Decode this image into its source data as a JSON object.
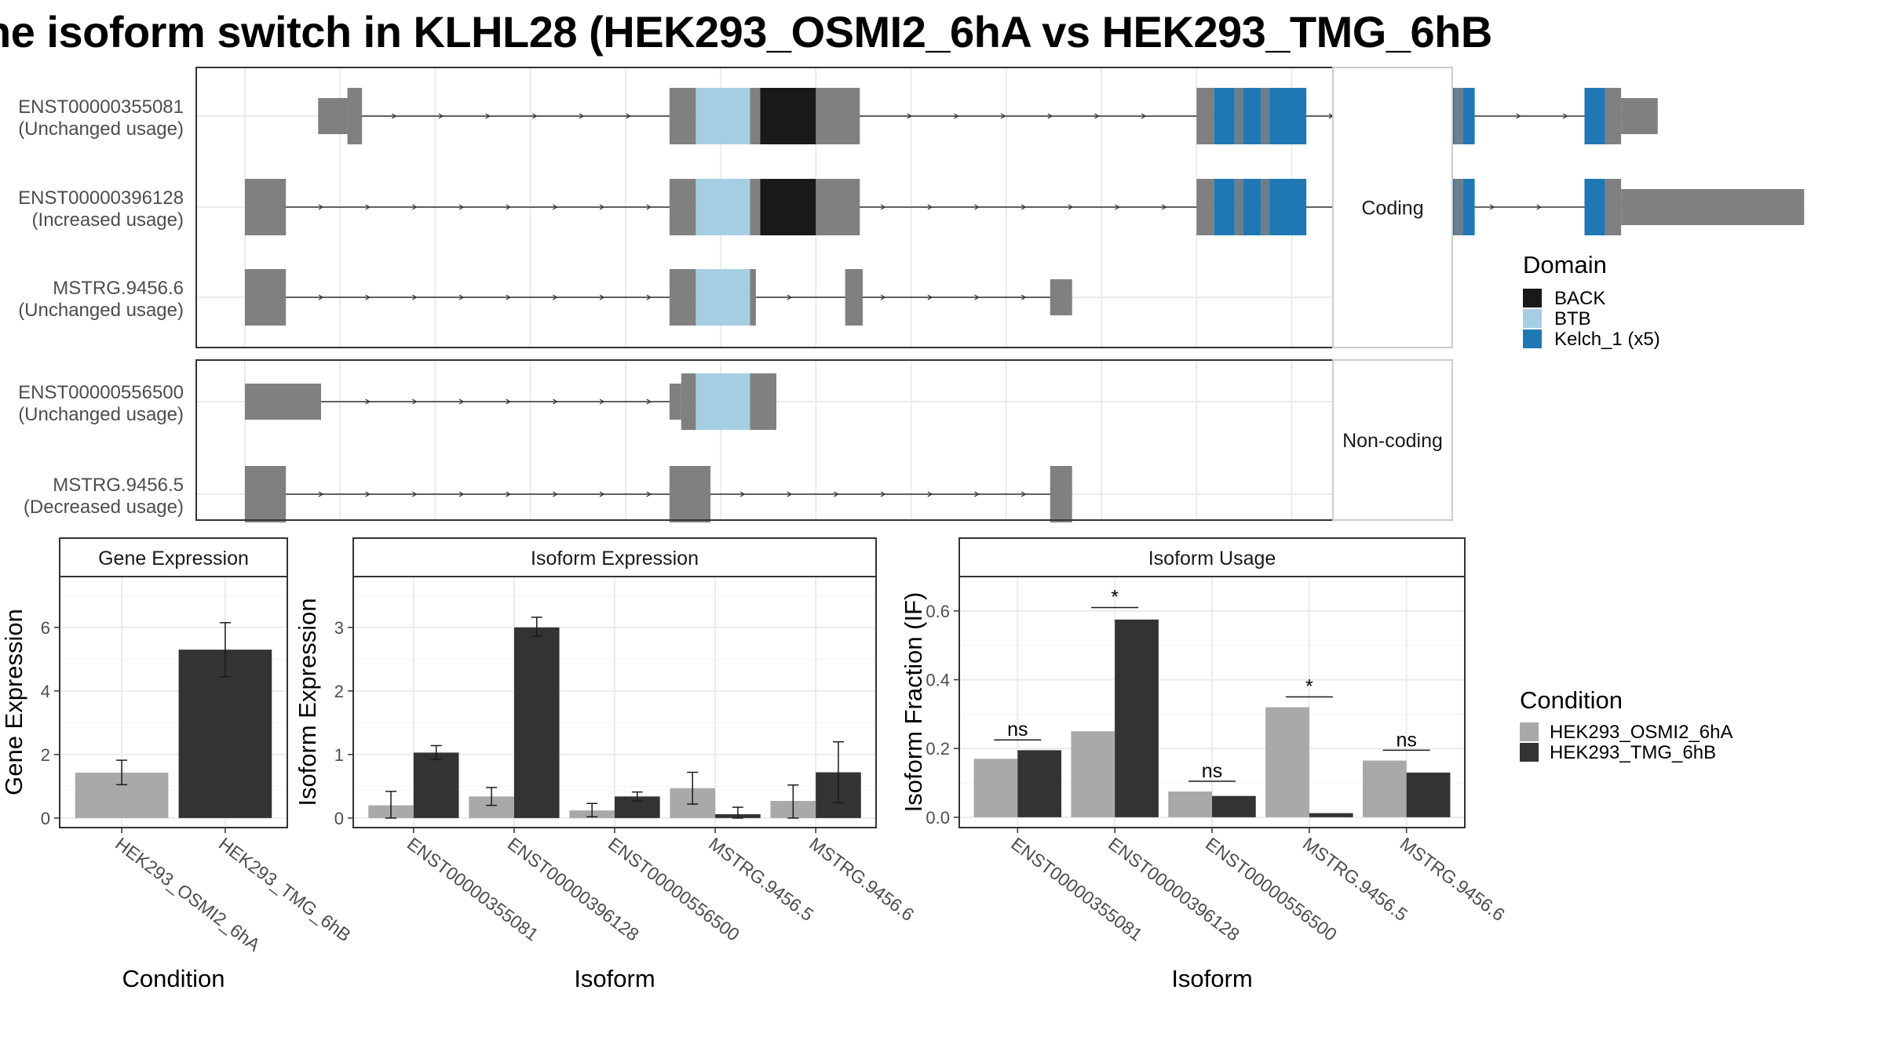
{
  "title": "ne isoform switch in KLHL28 (HEK293_OSMI2_6hA vs HEK293_TMG_6hB",
  "chart_data": [
    {
      "type": "gene-structure",
      "x_range": [
        0,
        100
      ],
      "groups": [
        {
          "strip": "Coding",
          "transcripts": [
            {
              "id": "ENST00000355081",
              "usage": "(Unchanged usage)",
              "exons": [
                [
                  10,
                  12,
                  "thin"
                ],
                [
                  12,
                  13,
                  "full"
                ],
                [
                  34,
                  35.8,
                  "full"
                ],
                [
                  35.8,
                  39.5,
                  "BTB"
                ],
                [
                  39.5,
                  40.2,
                  "full"
                ],
                [
                  40.2,
                  44,
                  "BACK"
                ],
                [
                  44,
                  47,
                  "full"
                ],
                [
                  70,
                  71.2,
                  "full"
                ],
                [
                  71.2,
                  72.6,
                  "Kelch_1"
                ],
                [
                  72.6,
                  73.2,
                  "full"
                ],
                [
                  73.2,
                  74.4,
                  "Kelch_1"
                ],
                [
                  74.4,
                  75,
                  "full"
                ],
                [
                  75,
                  77.5,
                  "Kelch_1"
                ],
                [
                  85,
                  85.8,
                  "Kelch_1"
                ],
                [
                  85.8,
                  86.4,
                  "full"
                ],
                [
                  86.4,
                  87.6,
                  "Kelch_1"
                ],
                [
                  87.6,
                  88.2,
                  "full"
                ],
                [
                  88.2,
                  89,
                  "Kelch_1"
                ],
                [
                  96.5,
                  97.9,
                  "Kelch_1"
                ],
                [
                  97.9,
                  99,
                  "full"
                ],
                [
                  99,
                  101.5,
                  "thin"
                ]
              ]
            },
            {
              "id": "ENST00000396128",
              "usage": "(Increased usage)",
              "exons": [
                [
                  5,
                  7.8,
                  "full"
                ],
                [
                  34,
                  35.8,
                  "full"
                ],
                [
                  35.8,
                  39.5,
                  "BTB"
                ],
                [
                  39.5,
                  40.2,
                  "full"
                ],
                [
                  40.2,
                  44,
                  "BACK"
                ],
                [
                  44,
                  47,
                  "full"
                ],
                [
                  70,
                  71.2,
                  "full"
                ],
                [
                  71.2,
                  72.6,
                  "Kelch_1"
                ],
                [
                  72.6,
                  73.2,
                  "full"
                ],
                [
                  73.2,
                  74.4,
                  "Kelch_1"
                ],
                [
                  74.4,
                  75,
                  "full"
                ],
                [
                  75,
                  77.5,
                  "Kelch_1"
                ],
                [
                  85,
                  85.8,
                  "Kelch_1"
                ],
                [
                  85.8,
                  86.4,
                  "full"
                ],
                [
                  86.4,
                  87.6,
                  "Kelch_1"
                ],
                [
                  87.6,
                  88.2,
                  "full"
                ],
                [
                  88.2,
                  89,
                  "Kelch_1"
                ],
                [
                  96.5,
                  97.9,
                  "Kelch_1"
                ],
                [
                  97.9,
                  99,
                  "full"
                ],
                [
                  99,
                  111.5,
                  "thin"
                ]
              ]
            },
            {
              "id": "MSTRG.9456.6",
              "usage": "(Unchanged usage)",
              "exons": [
                [
                  5,
                  7.8,
                  "full"
                ],
                [
                  34,
                  35.8,
                  "full"
                ],
                [
                  35.8,
                  39.5,
                  "BTB"
                ],
                [
                  39.5,
                  39.9,
                  "full"
                ],
                [
                  46,
                  47.2,
                  "full"
                ],
                [
                  60,
                  61.5,
                  "half"
                ]
              ]
            }
          ]
        },
        {
          "strip": "Non-coding",
          "transcripts": [
            {
              "id": "ENST00000556500",
              "usage": "(Unchanged usage)",
              "exons": [
                [
                  5,
                  10.2,
                  "thin"
                ],
                [
                  34,
                  34.8,
                  "thin"
                ],
                [
                  34.8,
                  35.8,
                  "full"
                ],
                [
                  35.8,
                  39.5,
                  "BTB"
                ],
                [
                  39.5,
                  41.3,
                  "full"
                ]
              ]
            },
            {
              "id": "MSTRG.9456.5",
              "usage": "(Decreased usage)",
              "exons": [
                [
                  5,
                  7.8,
                  "full"
                ],
                [
                  34,
                  36.8,
                  "full"
                ],
                [
                  60,
                  61.5,
                  "full"
                ]
              ]
            }
          ]
        }
      ],
      "legend_title": "Domain",
      "legend": [
        {
          "label": "BACK",
          "color": "#191919"
        },
        {
          "label": "BTB",
          "color": "#a6cee3"
        },
        {
          "label": "Kelch_1 (x5)",
          "color": "#1f78b4"
        }
      ],
      "colors": {
        "exon": "#808080",
        "intron": "#333333"
      }
    },
    {
      "type": "bar",
      "title": "Gene Expression",
      "xlabel": "Condition",
      "ylabel": "Gene Expression",
      "ylim": [
        -0.3,
        7.6
      ],
      "yticks": [
        0,
        2,
        4,
        6
      ],
      "categories": [
        "HEK293_OSMI2_6hA",
        "HEK293_TMG_6hB"
      ],
      "values": [
        1.43,
        5.3
      ],
      "error": [
        [
          1.05,
          1.82
        ],
        [
          4.45,
          6.15
        ]
      ],
      "colors": [
        "#a9a9a9",
        "#333333"
      ]
    },
    {
      "type": "bar",
      "title": "Isoform Expression",
      "xlabel": "Isoform",
      "ylabel": "Isoform Expression",
      "ylim": [
        -0.15,
        3.8
      ],
      "yticks": [
        0,
        1,
        2,
        3
      ],
      "categories": [
        "ENST00000355081",
        "ENST00000396128",
        "ENST00000556500",
        "MSTRG.9456.5",
        "MSTRG.9456.6"
      ],
      "series": [
        {
          "name": "HEK293_OSMI2_6hA",
          "color": "#a9a9a9",
          "values": [
            0.2,
            0.34,
            0.12,
            0.47,
            0.27
          ],
          "error": [
            [
              0,
              0.42
            ],
            [
              0.2,
              0.48
            ],
            [
              0.02,
              0.23
            ],
            [
              0.22,
              0.72
            ],
            [
              0,
              0.52
            ]
          ]
        },
        {
          "name": "HEK293_TMG_6hB",
          "color": "#333333",
          "values": [
            1.03,
            3.0,
            0.34,
            0.06,
            0.72
          ],
          "error": [
            [
              0.92,
              1.14
            ],
            [
              2.86,
              3.16
            ],
            [
              0.27,
              0.41
            ],
            [
              0,
              0.17
            ],
            [
              0.24,
              1.2
            ]
          ]
        }
      ]
    },
    {
      "type": "bar",
      "title": "Isoform Usage",
      "xlabel": "Isoform",
      "ylabel": "Isoform Fraction (IF)",
      "ylim": [
        -0.03,
        0.7
      ],
      "yticks": [
        0.0,
        0.2,
        0.4,
        0.6
      ],
      "ytick_labels": [
        "0.0",
        "0.2",
        "0.4",
        "0.6"
      ],
      "categories": [
        "ENST00000355081",
        "ENST00000396128",
        "ENST00000556500",
        "MSTRG.9456.5",
        "MSTRG.9456.6"
      ],
      "series": [
        {
          "name": "HEK293_OSMI2_6hA",
          "color": "#a9a9a9",
          "values": [
            0.17,
            0.25,
            0.075,
            0.32,
            0.165
          ]
        },
        {
          "name": "HEK293_TMG_6hB",
          "color": "#333333",
          "values": [
            0.195,
            0.575,
            0.062,
            0.012,
            0.13
          ]
        }
      ],
      "significance": [
        {
          "label": "ns",
          "y": 0.225
        },
        {
          "label": "*",
          "y": 0.61
        },
        {
          "label": "ns",
          "y": 0.105
        },
        {
          "label": "*",
          "y": 0.35
        },
        {
          "label": "ns",
          "y": 0.195
        }
      ]
    }
  ],
  "condition_legend": {
    "title": "Condition",
    "items": [
      {
        "label": "HEK293_OSMI2_6hA",
        "color": "#a9a9a9"
      },
      {
        "label": "HEK293_TMG_6hB",
        "color": "#333333"
      }
    ]
  }
}
